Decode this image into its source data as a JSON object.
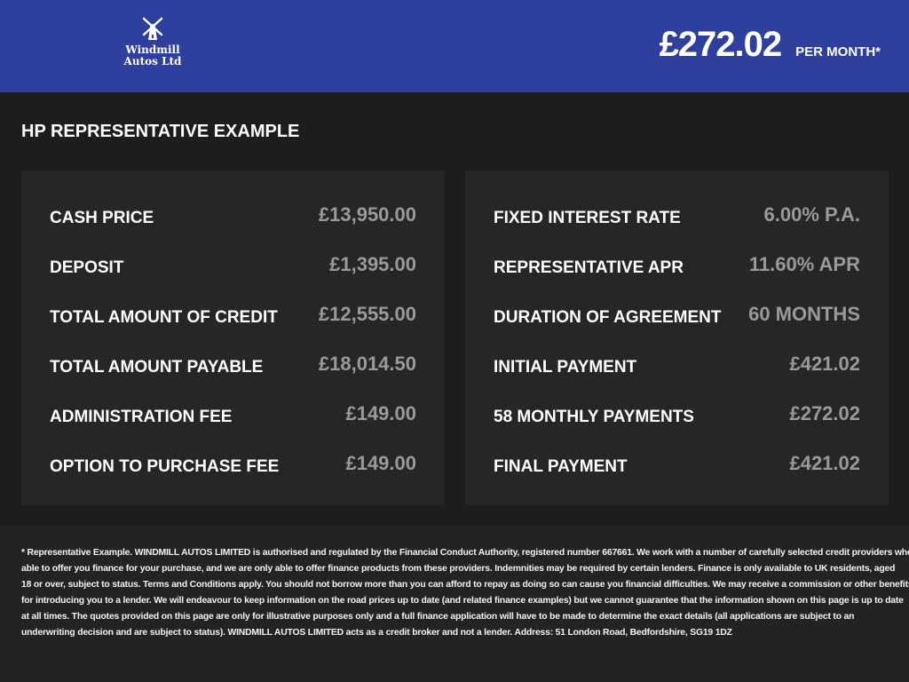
{
  "header": {
    "brand": "Windmill Autos Ltd",
    "brand_line1": "Windmill",
    "brand_line2": "Autos Ltd",
    "monthly_price": "£272.02",
    "price_suffix": "PER MONTH*",
    "color": "#2f3f9d"
  },
  "section_title": "HP REPRESENTATIVE EXAMPLE",
  "left_panel": [
    {
      "label": "CASH PRICE",
      "value": "£13,950.00"
    },
    {
      "label": "DEPOSIT",
      "value": "£1,395.00"
    },
    {
      "label": "TOTAL AMOUNT OF CREDIT",
      "value": "£12,555.00"
    },
    {
      "label": "TOTAL AMOUNT PAYABLE",
      "value": "£18,014.50"
    },
    {
      "label": "ADMINISTRATION FEE",
      "value": "£149.00"
    },
    {
      "label": "OPTION TO PURCHASE FEE",
      "value": "£149.00"
    }
  ],
  "right_panel": [
    {
      "label": "FIXED INTEREST RATE",
      "value": "6.00% P.A."
    },
    {
      "label": "REPRESENTATIVE APR",
      "value": "11.60% APR"
    },
    {
      "label": "DURATION OF AGREEMENT",
      "value": "60 MONTHS"
    },
    {
      "label": "INITIAL PAYMENT",
      "value": "£421.02"
    },
    {
      "label": "58 MONTHLY PAYMENTS",
      "value": "£272.02"
    },
    {
      "label": "FINAL PAYMENT",
      "value": "£421.02"
    }
  ],
  "disclaimer": [
    "* Representative Example. WINDMILL AUTOS LIMITED is authorised and regulated by the Financial Conduct Authority, registered number 667661. We work with a number of carefully selected credit providers who may be",
    "able to offer you finance for your purchase, and we are only able to offer finance products from these providers. Indemnities may be required by certain lenders. Finance is only available to UK residents, aged",
    "18 or over, subject to status. Terms and Conditions apply. You should not borrow more than you can afford to repay as doing so can cause you financial difficulties. We may receive a commission or other benefits",
    "for introducing you to a lender. We will endeavour to keep information on the road prices up to date (and related finance examples) but we cannot guarantee that the information shown on this page is up to date",
    "at all times. The quotes provided on this page are only for illustrative purposes only and a full finance application will have to be made to determine the exact details (all applications are subject to an",
    "underwriting decision and are subject to status). WINDMILL AUTOS LIMITED acts as a credit broker and not a lender. Address: 51 London Road, Bedfordshire, SG19 1DZ"
  ]
}
